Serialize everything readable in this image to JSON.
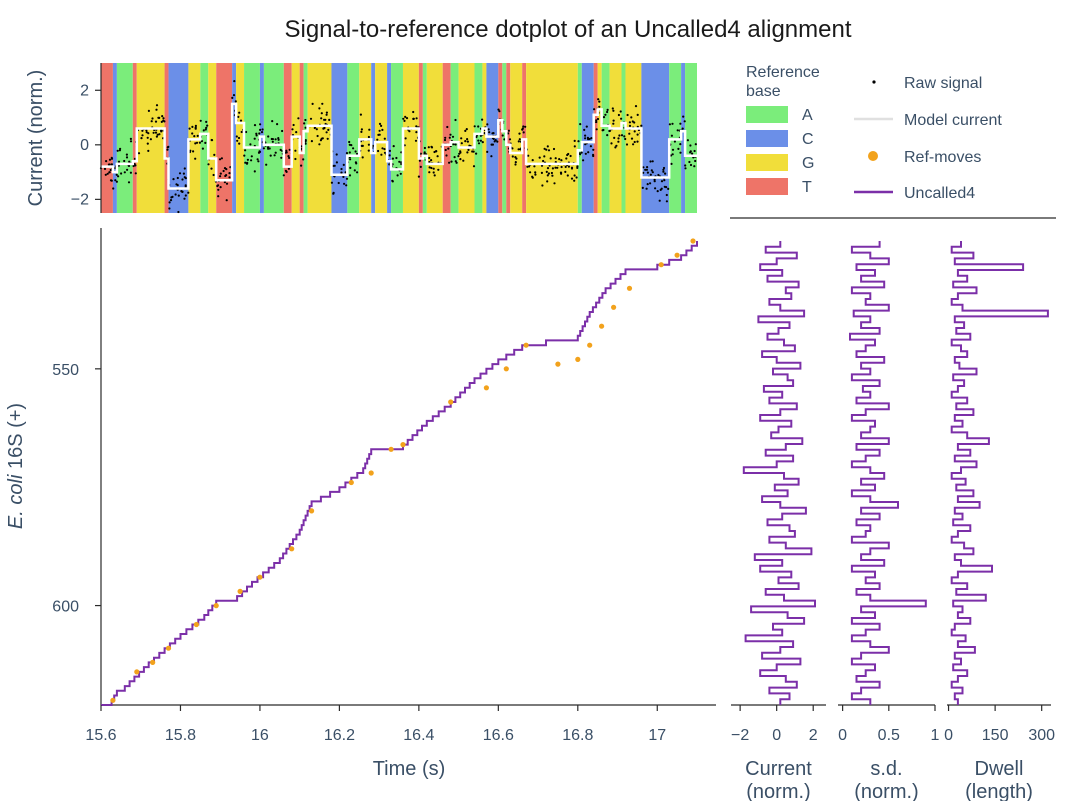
{
  "title": "Signal-to-reference dotplot of an Uncalled4 alignment",
  "colors": {
    "A": "#7bed7b",
    "C": "#6b8fe8",
    "G": "#f1de3a",
    "T": "#ee7468",
    "uncalled4": "#7b2fa8",
    "refmoves": "#f2a21c",
    "model": "#e0e0e0",
    "raw": "#000000",
    "axis": "#2b2b2b",
    "text": "#3a4f66"
  },
  "legend": {
    "reference_title_1": "Reference",
    "reference_title_2": "base",
    "bases": [
      "A",
      "C",
      "G",
      "T"
    ],
    "raw": "Raw signal",
    "model": "Model current",
    "refmoves": "Ref-moves",
    "uncalled4": "Uncalled4"
  },
  "chart_data": [
    {
      "type": "scatter",
      "name": "signal-track",
      "ylabel": "Current (norm.)",
      "xlim": [
        15.6,
        17.1
      ],
      "ylim": [
        -2.5,
        3.0
      ],
      "yticks": [
        -2,
        0,
        2
      ],
      "segments": [
        {
          "base": "T",
          "start": 15.6,
          "end": 15.63,
          "level": -0.8
        },
        {
          "base": "C",
          "start": 15.63,
          "end": 15.64,
          "level": -1.0
        },
        {
          "base": "A",
          "start": 15.64,
          "end": 15.68,
          "level": -0.7
        },
        {
          "base": "T",
          "start": 15.68,
          "end": 15.69,
          "level": -0.6
        },
        {
          "base": "G",
          "start": 15.69,
          "end": 15.76,
          "level": 0.6
        },
        {
          "base": "T",
          "start": 15.76,
          "end": 15.77,
          "level": -0.5
        },
        {
          "base": "C",
          "start": 15.77,
          "end": 15.82,
          "level": -1.6
        },
        {
          "base": "G",
          "start": 15.82,
          "end": 15.85,
          "level": 0.2
        },
        {
          "base": "A",
          "start": 15.85,
          "end": 15.87,
          "level": 0.4
        },
        {
          "base": "G",
          "start": 15.87,
          "end": 15.89,
          "level": -0.5
        },
        {
          "base": "T",
          "start": 15.89,
          "end": 15.93,
          "level": -1.3
        },
        {
          "base": "C",
          "start": 15.93,
          "end": 15.94,
          "level": 1.5
        },
        {
          "base": "G",
          "start": 15.94,
          "end": 15.96,
          "level": 0.8
        },
        {
          "base": "A",
          "start": 15.96,
          "end": 16.0,
          "level": -0.1
        },
        {
          "base": "C",
          "start": 16.0,
          "end": 16.01,
          "level": 0.3
        },
        {
          "base": "A",
          "start": 16.01,
          "end": 16.06,
          "level": 0.0
        },
        {
          "base": "T",
          "start": 16.06,
          "end": 16.08,
          "level": -0.8
        },
        {
          "base": "G",
          "start": 16.08,
          "end": 16.1,
          "level": 0.3
        },
        {
          "base": "T",
          "start": 16.1,
          "end": 16.11,
          "level": -0.3
        },
        {
          "base": "A",
          "start": 16.11,
          "end": 16.12,
          "level": 0.5
        },
        {
          "base": "G",
          "start": 16.12,
          "end": 16.18,
          "level": 0.7
        },
        {
          "base": "C",
          "start": 16.18,
          "end": 16.22,
          "level": -1.1
        },
        {
          "base": "A",
          "start": 16.22,
          "end": 16.25,
          "level": -0.4
        },
        {
          "base": "G",
          "start": 16.25,
          "end": 16.28,
          "level": 0.2
        },
        {
          "base": "C",
          "start": 16.28,
          "end": 16.29,
          "level": -0.3
        },
        {
          "base": "G",
          "start": 16.29,
          "end": 16.32,
          "level": 0.1
        },
        {
          "base": "C",
          "start": 16.32,
          "end": 16.33,
          "level": -0.6
        },
        {
          "base": "A",
          "start": 16.33,
          "end": 16.36,
          "level": -0.9
        },
        {
          "base": "G",
          "start": 16.36,
          "end": 16.4,
          "level": 0.6
        },
        {
          "base": "T",
          "start": 16.4,
          "end": 16.41,
          "level": -0.5
        },
        {
          "base": "A",
          "start": 16.41,
          "end": 16.42,
          "level": -0.4
        },
        {
          "base": "G",
          "start": 16.42,
          "end": 16.46,
          "level": -0.7
        },
        {
          "base": "T",
          "start": 16.46,
          "end": 16.48,
          "level": 0.0
        },
        {
          "base": "A",
          "start": 16.48,
          "end": 16.5,
          "level": 0.1
        },
        {
          "base": "G",
          "start": 16.5,
          "end": 16.54,
          "level": -0.1
        },
        {
          "base": "A",
          "start": 16.54,
          "end": 16.56,
          "level": 0.4
        },
        {
          "base": "G",
          "start": 16.56,
          "end": 16.57,
          "level": 0.6
        },
        {
          "base": "C",
          "start": 16.57,
          "end": 16.6,
          "level": 0.3
        },
        {
          "base": "T",
          "start": 16.6,
          "end": 16.61,
          "level": 0.9
        },
        {
          "base": "A",
          "start": 16.61,
          "end": 16.62,
          "level": 0.5
        },
        {
          "base": "T",
          "start": 16.62,
          "end": 16.63,
          "level": 0.0
        },
        {
          "base": "G",
          "start": 16.63,
          "end": 16.66,
          "level": -0.3
        },
        {
          "base": "T",
          "start": 16.66,
          "end": 16.67,
          "level": 0.2
        },
        {
          "base": "G",
          "start": 16.67,
          "end": 16.8,
          "level": -0.7
        },
        {
          "base": "A",
          "start": 16.8,
          "end": 16.81,
          "level": -0.2
        },
        {
          "base": "C",
          "start": 16.81,
          "end": 16.84,
          "level": 0.1
        },
        {
          "base": "T",
          "start": 16.84,
          "end": 16.85,
          "level": 1.1
        },
        {
          "base": "G",
          "start": 16.85,
          "end": 16.86,
          "level": 1.3
        },
        {
          "base": "A",
          "start": 16.86,
          "end": 16.88,
          "level": 0.7
        },
        {
          "base": "G",
          "start": 16.88,
          "end": 16.91,
          "level": 0.6
        },
        {
          "base": "A",
          "start": 16.91,
          "end": 16.92,
          "level": 0.8
        },
        {
          "base": "G",
          "start": 16.92,
          "end": 16.96,
          "level": 0.6
        },
        {
          "base": "C",
          "start": 16.96,
          "end": 17.03,
          "level": -1.2
        },
        {
          "base": "A",
          "start": 17.03,
          "end": 17.06,
          "level": 0.2
        },
        {
          "base": "C",
          "start": 17.06,
          "end": 17.07,
          "level": 0.5
        },
        {
          "base": "A",
          "start": 17.07,
          "end": 17.1,
          "level": -0.4
        }
      ]
    },
    {
      "type": "line",
      "name": "dotplot",
      "xlabel": "Time (s)",
      "ylabel_italic": "E. coli",
      "ylabel_rest": " 16S (+)",
      "xlim": [
        15.6,
        17.1
      ],
      "ylim": [
        621,
        523
      ],
      "xticks": [
        15.6,
        15.8,
        16,
        16.2,
        16.4,
        16.6,
        16.8,
        17
      ],
      "xtick_labels": [
        "15.6",
        "15.8",
        "16",
        "16.2",
        "16.4",
        "16.6",
        "16.8",
        "17"
      ],
      "yticks": [
        550,
        600
      ],
      "uncalled4_path": [
        [
          15.6,
          621
        ],
        [
          15.62,
          621
        ],
        [
          15.64,
          618
        ],
        [
          15.66,
          617
        ],
        [
          15.72,
          612
        ],
        [
          15.8,
          606
        ],
        [
          15.86,
          602
        ],
        [
          15.89,
          599
        ],
        [
          15.93,
          599
        ],
        [
          15.98,
          595
        ],
        [
          16.05,
          590
        ],
        [
          16.1,
          584
        ],
        [
          16.13,
          578
        ],
        [
          16.2,
          575
        ],
        [
          16.26,
          571
        ],
        [
          16.28,
          567
        ],
        [
          16.36,
          566
        ],
        [
          16.42,
          561
        ],
        [
          16.48,
          557
        ],
        [
          16.54,
          552
        ],
        [
          16.6,
          548
        ],
        [
          16.66,
          545
        ],
        [
          16.72,
          544
        ],
        [
          16.8,
          543
        ],
        [
          16.83,
          538
        ],
        [
          16.87,
          533
        ],
        [
          16.92,
          529
        ],
        [
          17.0,
          528
        ],
        [
          17.06,
          526
        ],
        [
          17.1,
          523
        ]
      ],
      "refmoves_points": [
        [
          15.63,
          620
        ],
        [
          15.69,
          614
        ],
        [
          15.73,
          612
        ],
        [
          15.77,
          609
        ],
        [
          15.84,
          604
        ],
        [
          15.89,
          600
        ],
        [
          15.95,
          597
        ],
        [
          16.0,
          594
        ],
        [
          16.08,
          588
        ],
        [
          16.13,
          580
        ],
        [
          16.23,
          574
        ],
        [
          16.28,
          572
        ],
        [
          16.33,
          567
        ],
        [
          16.36,
          566
        ],
        [
          16.48,
          557
        ],
        [
          16.57,
          554
        ],
        [
          16.62,
          550
        ],
        [
          16.67,
          545
        ],
        [
          16.75,
          549
        ],
        [
          16.8,
          548
        ],
        [
          16.83,
          545
        ],
        [
          16.86,
          541
        ],
        [
          16.89,
          537
        ],
        [
          16.93,
          533
        ],
        [
          17.01,
          528
        ],
        [
          17.05,
          526
        ],
        [
          17.09,
          523
        ]
      ]
    },
    {
      "type": "line",
      "name": "current-panel",
      "xlabel_1": "Current",
      "xlabel_2": "(norm.)",
      "xlim": [
        -2.5,
        2.7
      ],
      "xticks": [
        -2,
        0,
        2
      ],
      "xtick_labels": [
        "−2",
        "0",
        "2"
      ],
      "values": [
        0.2,
        -0.6,
        1.1,
        0.0,
        -0.9,
        0.3,
        -0.5,
        1.2,
        0.5,
        0.8,
        -0.4,
        0.2,
        1.5,
        -1.0,
        0.7,
        0.1,
        -0.5,
        0.4,
        1.0,
        -0.8,
        0.0,
        1.3,
        -0.2,
        0.6,
        0.9,
        -0.7,
        0.3,
        -0.4,
        1.1,
        0.2,
        -0.9,
        0.8,
        0.1,
        -0.3,
        1.4,
        0.5,
        -0.6,
        0.9,
        0.0,
        -1.8,
        0.4,
        1.2,
        -0.1,
        0.6,
        -0.8,
        0.2,
        1.6,
        0.3,
        -0.5,
        0.7,
        1.0,
        -0.4,
        0.5,
        1.9,
        -1.2,
        0.3,
        -0.9,
        0.8,
        0.1,
        1.2,
        -0.6,
        0.4,
        2.1,
        -1.4,
        0.6,
        1.5,
        -0.2,
        0.3,
        -1.7,
        0.9,
        0.2,
        -0.8,
        1.3,
        0.0,
        -0.9,
        0.5,
        1.1,
        -0.4,
        0.7,
        0.2
      ]
    },
    {
      "type": "line",
      "name": "sd-panel",
      "xlabel_1": "s.d.",
      "xlabel_2": "(norm.)",
      "xlim": [
        -0.05,
        1.0
      ],
      "xticks": [
        0,
        0.5,
        1
      ],
      "xtick_labels": [
        "0",
        "0.5",
        "1"
      ],
      "values": [
        0.4,
        0.1,
        0.3,
        0.5,
        0.15,
        0.35,
        0.2,
        0.45,
        0.1,
        0.3,
        0.25,
        0.5,
        0.12,
        0.3,
        0.2,
        0.4,
        0.08,
        0.35,
        0.25,
        0.15,
        0.45,
        0.2,
        0.3,
        0.1,
        0.4,
        0.22,
        0.3,
        0.15,
        0.5,
        0.25,
        0.1,
        0.35,
        0.3,
        0.2,
        0.5,
        0.15,
        0.4,
        0.25,
        0.1,
        0.3,
        0.45,
        0.2,
        0.35,
        0.1,
        0.3,
        0.6,
        0.2,
        0.4,
        0.15,
        0.3,
        0.25,
        0.1,
        0.5,
        0.3,
        0.2,
        0.45,
        0.1,
        0.35,
        0.25,
        0.4,
        0.15,
        0.3,
        0.9,
        0.2,
        0.35,
        0.1,
        0.4,
        0.25,
        0.1,
        0.3,
        0.5,
        0.2,
        0.1,
        0.35,
        0.25,
        0.15,
        0.4,
        0.2,
        0.1,
        0.3
      ]
    },
    {
      "type": "line",
      "name": "dwell-panel",
      "xlabel_1": "Dwell",
      "xlabel_2": "(length)",
      "xlim": [
        -5,
        330
      ],
      "xticks": [
        0,
        150,
        300
      ],
      "xtick_labels": [
        "0",
        "150",
        "300"
      ],
      "values": [
        40,
        10,
        80,
        20,
        240,
        30,
        60,
        15,
        90,
        30,
        10,
        45,
        320,
        20,
        50,
        25,
        70,
        10,
        40,
        60,
        20,
        35,
        90,
        15,
        50,
        30,
        10,
        60,
        25,
        80,
        20,
        45,
        10,
        60,
        130,
        30,
        70,
        20,
        90,
        40,
        10,
        55,
        25,
        80,
        30,
        100,
        20,
        45,
        15,
        70,
        30,
        10,
        50,
        80,
        20,
        40,
        140,
        30,
        10,
        60,
        25,
        120,
        15,
        45,
        30,
        70,
        20,
        10,
        55,
        30,
        85,
        20,
        40,
        15,
        60,
        30,
        10,
        45,
        20,
        30
      ]
    }
  ]
}
